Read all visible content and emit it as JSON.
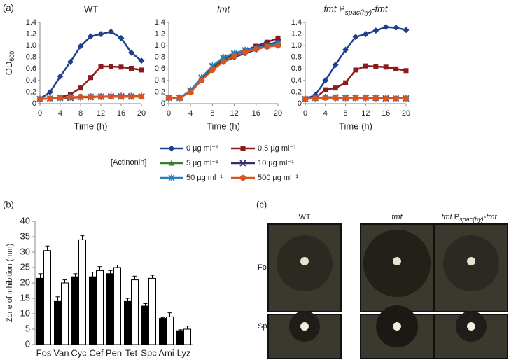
{
  "panel_labels": [
    "(a)",
    "(b)",
    "(c)"
  ],
  "legend": {
    "title": "[Actinonin]",
    "entries": [
      {
        "name": "0 µg ml⁻¹",
        "color": "#1f3f8f",
        "marker": "diamond"
      },
      {
        "name": "0.5 µg ml⁻¹",
        "color": "#8b1a1a",
        "marker": "square"
      },
      {
        "name": "5 µg ml⁻¹",
        "color": "#3a7d2a",
        "marker": "triangle"
      },
      {
        "name": "10 µg ml⁻¹",
        "color": "#3b2a6e",
        "marker": "x"
      },
      {
        "name": "50 µg ml⁻¹",
        "color": "#2c7fb8",
        "marker": "star"
      },
      {
        "name": "500 µg ml⁻¹",
        "color": "#d9541e",
        "marker": "circle"
      }
    ]
  },
  "chart_data": [
    {
      "type": "line",
      "title": [
        "WT"
      ],
      "xlabel": "Time (h)",
      "ylabel": [
        "OD",
        "600"
      ],
      "x": [
        0,
        2,
        4,
        6,
        8,
        10,
        12,
        14,
        16,
        18,
        20
      ],
      "xlim": [
        0,
        20
      ],
      "xticks": [
        0,
        4,
        8,
        12,
        16,
        20
      ],
      "ylim": [
        0,
        1.4
      ],
      "yticks": [
        0,
        0.2,
        0.4,
        0.6,
        0.8,
        {
          "value": 1,
          "label": "1.0"
        },
        1.2,
        1.4
      ],
      "series": [
        {
          "values": [
            0.08,
            0.2,
            0.47,
            0.72,
            0.99,
            1.16,
            1.2,
            1.24,
            1.13,
            0.88,
            0.74
          ]
        },
        {
          "values": [
            0.08,
            0.09,
            0.11,
            0.16,
            0.27,
            0.45,
            0.64,
            0.64,
            0.63,
            0.61,
            0.58
          ]
        },
        {
          "values": [
            0.08,
            0.09,
            0.1,
            0.11,
            0.11,
            0.12,
            0.12,
            0.12,
            0.12,
            0.12,
            0.12
          ]
        },
        {
          "values": [
            0.08,
            0.09,
            0.1,
            0.1,
            0.11,
            0.11,
            0.12,
            0.12,
            0.12,
            0.12,
            0.12
          ]
        },
        {
          "values": [
            0.08,
            0.09,
            0.1,
            0.11,
            0.11,
            0.12,
            0.12,
            0.13,
            0.13,
            0.13,
            0.13
          ]
        },
        {
          "values": [
            0.08,
            0.09,
            0.1,
            0.11,
            0.12,
            0.12,
            0.12,
            0.12,
            0.12,
            0.12,
            0.12
          ]
        }
      ]
    },
    {
      "type": "line",
      "title": [
        "fmt"
      ],
      "xlabel": "Time (h)",
      "x": [
        0,
        2,
        4,
        6,
        8,
        10,
        12,
        14,
        16,
        18,
        20
      ],
      "xlim": [
        0,
        20
      ],
      "xticks": [
        0,
        4,
        8,
        12,
        16,
        20
      ],
      "ylim": [
        0,
        1.4
      ],
      "yticks": [
        0,
        0.2,
        0.4,
        0.6,
        0.8,
        {
          "value": 1,
          "label": "1.0"
        },
        1.2,
        1.4
      ],
      "series": [
        {
          "values": [
            0.1,
            0.1,
            0.22,
            0.42,
            0.6,
            0.72,
            0.8,
            0.87,
            0.93,
            0.99,
            1.04
          ]
        },
        {
          "values": [
            0.1,
            0.1,
            0.22,
            0.41,
            0.6,
            0.75,
            0.84,
            0.92,
            0.99,
            1.06,
            1.13
          ]
        },
        {
          "values": [
            0.1,
            0.1,
            0.22,
            0.43,
            0.63,
            0.77,
            0.85,
            0.91,
            0.96,
            1.01,
            1.05
          ]
        },
        {
          "values": [
            0.1,
            0.1,
            0.22,
            0.44,
            0.64,
            0.79,
            0.86,
            0.92,
            0.97,
            1.02,
            1.06
          ]
        },
        {
          "values": [
            0.1,
            0.1,
            0.23,
            0.45,
            0.65,
            0.8,
            0.87,
            0.92,
            0.96,
            1.0,
            1.03
          ]
        },
        {
          "values": [
            0.1,
            0.1,
            0.2,
            0.4,
            0.58,
            0.72,
            0.82,
            0.89,
            0.94,
            0.98,
            1.0
          ]
        }
      ]
    },
    {
      "type": "line",
      "title": [
        "fmt",
        " P",
        "spac(hy)",
        "-fmt"
      ],
      "xlabel": "Time (h)",
      "x": [
        0,
        2,
        4,
        6,
        8,
        10,
        12,
        14,
        16,
        18,
        20
      ],
      "xlim": [
        0,
        20
      ],
      "xticks": [
        0,
        4,
        8,
        12,
        16,
        20
      ],
      "ylim": [
        0,
        1.4
      ],
      "yticks": [
        0,
        0.2,
        0.4,
        0.6,
        0.8,
        {
          "value": 1,
          "label": "1.0"
        },
        1.2,
        1.4
      ],
      "series": [
        {
          "values": [
            0.08,
            0.15,
            0.4,
            0.67,
            0.93,
            1.15,
            1.2,
            1.26,
            1.32,
            1.31,
            1.27
          ]
        },
        {
          "values": [
            0.08,
            0.1,
            0.24,
            0.27,
            0.36,
            0.58,
            0.65,
            0.64,
            0.63,
            0.6,
            0.57
          ]
        },
        {
          "values": [
            0.08,
            0.1,
            0.11,
            0.1,
            0.1,
            0.1,
            0.1,
            0.09,
            0.09,
            0.09,
            0.09
          ]
        },
        {
          "values": [
            0.08,
            0.1,
            0.11,
            0.11,
            0.1,
            0.1,
            0.1,
            0.1,
            0.09,
            0.09,
            0.09
          ]
        },
        {
          "values": [
            0.08,
            0.1,
            0.11,
            0.1,
            0.1,
            0.1,
            0.1,
            0.1,
            0.1,
            0.09,
            0.09
          ]
        },
        {
          "values": [
            0.08,
            0.09,
            0.1,
            0.1,
            0.1,
            0.1,
            0.1,
            0.09,
            0.09,
            0.09,
            0.09
          ]
        }
      ]
    },
    {
      "type": "bar",
      "ylabel": "Zone of inhibition (mm)",
      "categories": [
        "Fos",
        "Van",
        "Cyc",
        "Cef",
        "Pen",
        "Tet",
        "Spc",
        "Ami",
        "Lyz"
      ],
      "ylim": [
        0,
        40
      ],
      "yticks": [
        0,
        5,
        10,
        15,
        20,
        25,
        30,
        35,
        40
      ],
      "series": [
        {
          "color": "#000000",
          "values": [
            21.5,
            14,
            22,
            22,
            23,
            14,
            12.5,
            8.5,
            4.5
          ],
          "errors": [
            1.5,
            1.5,
            1,
            1.5,
            1,
            1,
            0.8,
            0.3,
            0.3
          ]
        },
        {
          "color": "#ffffff",
          "values": [
            30.5,
            20,
            34,
            24,
            25,
            21,
            21.5,
            9,
            5
          ],
          "errors": [
            1.5,
            1,
            1.3,
            1.3,
            0.8,
            1.2,
            1,
            1.3,
            1
          ]
        }
      ]
    }
  ],
  "panel_c": {
    "columns": [
      [
        "WT"
      ],
      [
        "fmt"
      ],
      [
        "fmt",
        " P",
        "spac(hy)",
        "-fmt"
      ]
    ],
    "rows": [
      "Fos",
      "Spc"
    ]
  }
}
